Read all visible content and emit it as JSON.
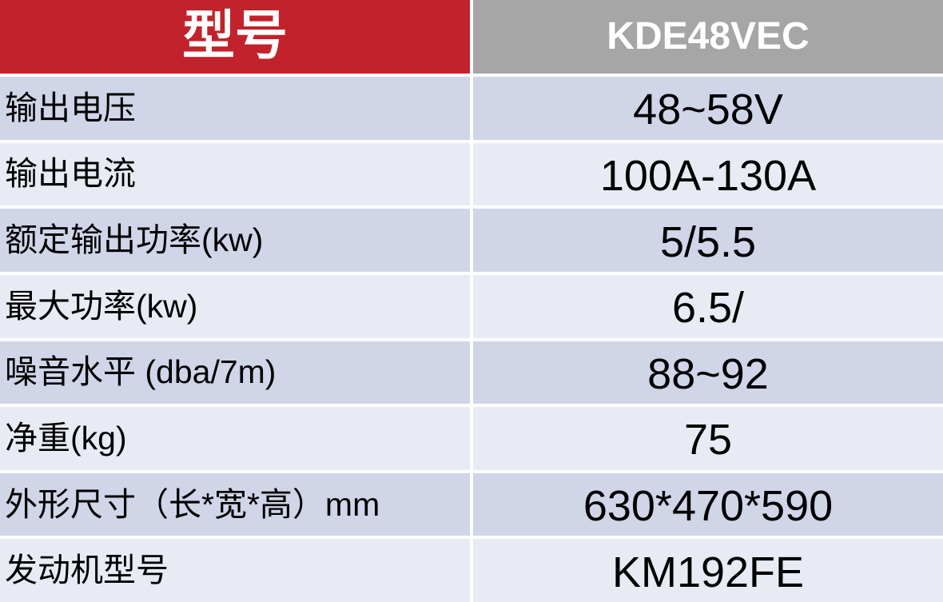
{
  "table": {
    "header": {
      "model_label": "型号",
      "model_value": "KDE48VEC"
    },
    "rows": [
      {
        "label": "输出电压",
        "value": "48~58V"
      },
      {
        "label": "输出电流",
        "value": "100A-130A"
      },
      {
        "label": "额定输出功率(kw)",
        "value": "5/5.5"
      },
      {
        "label": "最大功率(kw)",
        "value": "6.5/"
      },
      {
        "label": "噪音水平 (dba/7m)",
        "value": "88~92"
      },
      {
        "label": "净重(kg)",
        "value": "75"
      },
      {
        "label": "外形尺寸（长*宽*高）mm",
        "value": "630*470*590"
      },
      {
        "label": "发动机型号",
        "value": "KM192FE"
      }
    ],
    "colors": {
      "header_left_bg": "#C2222B",
      "header_right_bg": "#A6A6A6",
      "row_dark_bg": "#D0D5E8",
      "row_light_bg": "#E9EBF4",
      "grid_line": "#FFFFFF",
      "header_text": "#FFFFFF",
      "body_text": "#000000"
    }
  }
}
